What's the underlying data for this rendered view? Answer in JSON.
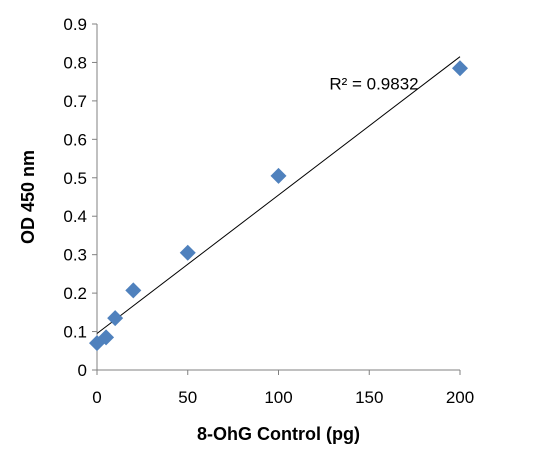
{
  "chart_data": {
    "type": "scatter",
    "title": "",
    "xlabel": "8-OhG Control (pg)",
    "ylabel": "OD 450 nm",
    "xlim": [
      0,
      200
    ],
    "ylim": [
      0,
      0.9
    ],
    "xticks": [
      0,
      50,
      100,
      150,
      200
    ],
    "yticks": [
      0,
      0.1,
      0.2,
      0.3,
      0.4,
      0.5,
      0.6,
      0.7,
      0.8,
      0.9
    ],
    "xtick_labels": [
      "0",
      "50",
      "100",
      "150",
      "200"
    ],
    "ytick_labels": [
      "0",
      "0.1",
      "0.2",
      "0.3",
      "0.4",
      "0.5",
      "0.6",
      "0.7",
      "0.8",
      "0.9"
    ],
    "grid": false,
    "legend": "none",
    "marker": "diamond",
    "colors": {
      "marker": "#4f81bd",
      "trendline": "#000000",
      "axis": "#808080"
    },
    "series": [
      {
        "x": [
          0,
          5,
          10,
          20,
          50,
          100,
          200
        ],
        "y": [
          0.07,
          0.085,
          0.135,
          0.207,
          0.305,
          0.505,
          0.785
        ]
      }
    ],
    "trendline": {
      "type": "linear",
      "x_range": [
        0,
        200
      ],
      "y_range": [
        0.095,
        0.815
      ]
    },
    "annotation": {
      "text": "R² = 0.9832",
      "x": 128,
      "y": 0.745
    }
  }
}
